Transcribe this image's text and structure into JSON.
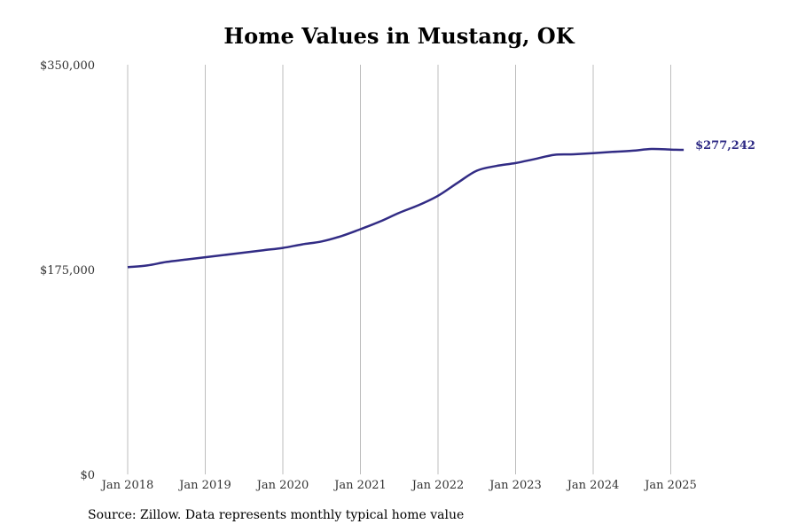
{
  "chart_data": {
    "type": "line",
    "title": "Home Values in Mustang, OK",
    "source": "Source: Zillow. Data represents monthly typical home value",
    "ylim": [
      0,
      350000
    ],
    "y_ticks": [
      {
        "value": 350000,
        "label": "$350,000"
      },
      {
        "value": 175000,
        "label": "$175,000"
      },
      {
        "value": 0,
        "label": "$0"
      }
    ],
    "x_ticks": [
      {
        "value": "2018-01",
        "label": "Jan 2018"
      },
      {
        "value": "2019-01",
        "label": "Jan 2019"
      },
      {
        "value": "2020-01",
        "label": "Jan 2020"
      },
      {
        "value": "2021-01",
        "label": "Jan 2021"
      },
      {
        "value": "2022-01",
        "label": "Jan 2022"
      },
      {
        "value": "2023-01",
        "label": "Jan 2023"
      },
      {
        "value": "2024-01",
        "label": "Jan 2024"
      },
      {
        "value": "2025-01",
        "label": "Jan 2025"
      }
    ],
    "grid": "vertical",
    "line_color": "#322c85",
    "end_label": "$277,242",
    "series": [
      {
        "points": [
          [
            "2018-01",
            177000
          ],
          [
            "2018-04",
            178500
          ],
          [
            "2018-07",
            181500
          ],
          [
            "2018-10",
            183500
          ],
          [
            "2019-01",
            185500
          ],
          [
            "2019-04",
            187500
          ],
          [
            "2019-07",
            189500
          ],
          [
            "2019-10",
            191500
          ],
          [
            "2020-01",
            193500
          ],
          [
            "2020-04",
            196500
          ],
          [
            "2020-07",
            199000
          ],
          [
            "2020-10",
            203500
          ],
          [
            "2021-01",
            209500
          ],
          [
            "2021-04",
            216000
          ],
          [
            "2021-07",
            223500
          ],
          [
            "2021-10",
            230000
          ],
          [
            "2022-01",
            238000
          ],
          [
            "2022-04",
            249000
          ],
          [
            "2022-07",
            259500
          ],
          [
            "2022-10",
            263500
          ],
          [
            "2023-01",
            266000
          ],
          [
            "2023-04",
            269500
          ],
          [
            "2023-07",
            273000
          ],
          [
            "2023-10",
            273500
          ],
          [
            "2024-01",
            274500
          ],
          [
            "2024-04",
            275500
          ],
          [
            "2024-07",
            276500
          ],
          [
            "2024-10",
            278000
          ],
          [
            "2025-01",
            277500
          ],
          [
            "2025-03",
            277242
          ]
        ]
      }
    ]
  }
}
